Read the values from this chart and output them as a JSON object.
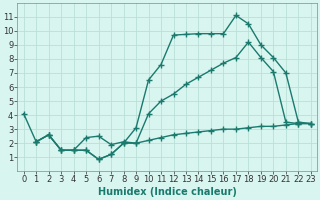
{
  "line1_x": [
    0,
    1,
    2,
    3,
    4,
    5,
    6,
    7,
    8,
    9,
    10,
    11,
    12,
    13,
    14,
    15,
    16,
    17,
    18,
    19,
    20,
    21,
    22,
    23
  ],
  "line1_y": [
    4.1,
    2.1,
    2.6,
    1.5,
    1.5,
    1.5,
    0.85,
    1.2,
    2.0,
    3.1,
    6.5,
    7.6,
    9.7,
    9.75,
    9.8,
    9.8,
    9.8,
    11.1,
    10.5,
    9.0,
    8.1,
    7.0,
    3.5,
    3.4
  ],
  "line2_x": [
    1,
    2,
    3,
    4,
    5,
    6,
    7,
    8,
    9,
    10,
    11,
    12,
    13,
    14,
    15,
    16,
    17,
    18,
    19,
    20,
    21,
    22,
    23
  ],
  "line2_y": [
    2.1,
    2.6,
    1.5,
    1.5,
    2.4,
    2.5,
    1.9,
    2.1,
    2.0,
    4.1,
    5.0,
    5.5,
    6.2,
    6.7,
    7.2,
    7.7,
    8.1,
    9.2,
    8.1,
    7.1,
    3.5,
    3.4,
    3.4
  ],
  "line3_x": [
    1,
    2,
    3,
    4,
    5,
    6,
    7,
    8,
    9,
    10,
    11,
    12,
    13,
    14,
    15,
    16,
    17,
    18,
    19,
    20,
    21,
    22,
    23
  ],
  "line3_y": [
    2.1,
    2.6,
    1.5,
    1.5,
    1.5,
    0.85,
    1.2,
    2.0,
    2.0,
    2.2,
    2.4,
    2.6,
    2.7,
    2.8,
    2.9,
    3.0,
    3.0,
    3.1,
    3.2,
    3.2,
    3.3,
    3.4,
    3.4
  ],
  "color": "#1a7a6e",
  "bg_color": "#d9f5f0",
  "grid_color": "#b8e0d8",
  "xlabel": "Humidex (Indice chaleur)",
  "ylim": [
    0,
    12
  ],
  "xlim": [
    -0.5,
    23.5
  ],
  "yticks": [
    1,
    2,
    3,
    4,
    5,
    6,
    7,
    8,
    9,
    10,
    11
  ],
  "xticks": [
    0,
    1,
    2,
    3,
    4,
    5,
    6,
    7,
    8,
    9,
    10,
    11,
    12,
    13,
    14,
    15,
    16,
    17,
    18,
    19,
    20,
    21,
    22,
    23
  ],
  "marker": "+",
  "markersize": 4,
  "linewidth": 1.0,
  "xlabel_fontsize": 7,
  "tick_fontsize": 6
}
